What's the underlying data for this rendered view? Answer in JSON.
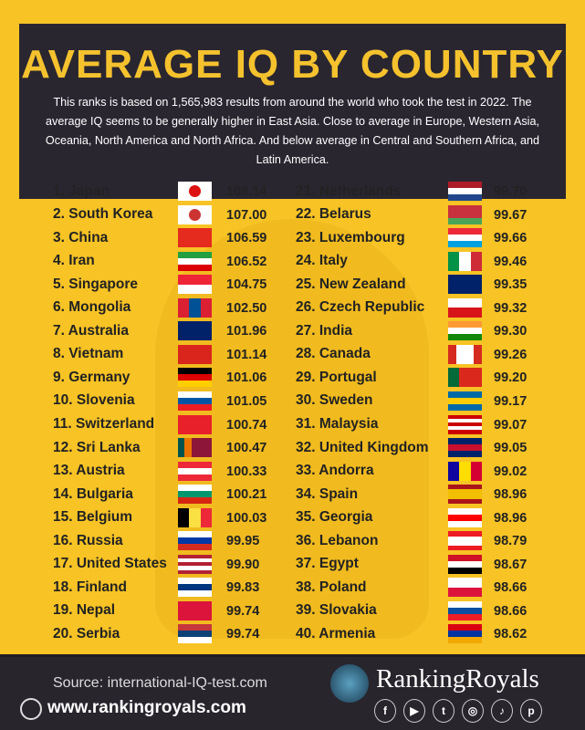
{
  "header": {
    "title": "AVERAGE IQ BY COUNTRY",
    "description": "This ranks is based on 1,565,983 results from around the world who took the test in 2022. The average IQ seems to be generally higher in East Asia. Close to average in Europe, Western Asia, Oceania, North America and North Africa. And below average in Central and Southern Africa, and Latin America."
  },
  "columns": {
    "rank": "Rank",
    "score": "Score"
  },
  "chart_data": {
    "type": "table",
    "title": "AVERAGE IQ BY COUNTRY",
    "columns": [
      "Rank",
      "Country",
      "Score"
    ],
    "rows": [
      {
        "label": "1. Japan",
        "score": "108.14",
        "flag": {
          "d": "h",
          "c": [
            "#fff"
          ],
          "dot": "#d11"
        }
      },
      {
        "label": "2. South Korea",
        "score": "107.00",
        "flag": {
          "d": "h",
          "c": [
            "#fff"
          ],
          "dot": "#c33"
        }
      },
      {
        "label": "3. China",
        "score": "106.59",
        "flag": {
          "d": "h",
          "c": [
            "#e52a1e"
          ]
        }
      },
      {
        "label": "4. Iran",
        "score": "106.52",
        "flag": {
          "d": "h",
          "c": [
            "#239f40",
            "#fff",
            "#da0000"
          ]
        }
      },
      {
        "label": "5. Singapore",
        "score": "104.75",
        "flag": {
          "d": "h",
          "c": [
            "#ee2536",
            "#fff"
          ]
        }
      },
      {
        "label": "6. Mongolia",
        "score": "102.50",
        "flag": {
          "d": "v",
          "c": [
            "#da2032",
            "#015197",
            "#da2032"
          ]
        }
      },
      {
        "label": "7. Australia",
        "score": "101.96",
        "flag": {
          "d": "h",
          "c": [
            "#012169"
          ]
        }
      },
      {
        "label": "8. Vietnam",
        "score": "101.14",
        "flag": {
          "d": "h",
          "c": [
            "#da251d"
          ]
        }
      },
      {
        "label": "9. Germany",
        "score": "101.06",
        "flag": {
          "d": "h",
          "c": [
            "#000",
            "#dd0000",
            "#ffce00"
          ]
        }
      },
      {
        "label": "10. Slovenia",
        "score": "101.05",
        "flag": {
          "d": "h",
          "c": [
            "#fff",
            "#0055a4",
            "#ed1c24"
          ]
        }
      },
      {
        "label": "11. Switzerland",
        "score": "100.74",
        "flag": {
          "d": "h",
          "c": [
            "#e8202a"
          ]
        }
      },
      {
        "label": "12. Sri Lanka",
        "score": "100.47",
        "flag": {
          "d": "v",
          "c": [
            "#00534e",
            "#eb7400",
            "#8d153a",
            "#8d153a",
            "#8d153a"
          ]
        }
      },
      {
        "label": "13. Austria",
        "score": "100.33",
        "flag": {
          "d": "h",
          "c": [
            "#ed2939",
            "#fff",
            "#ed2939"
          ]
        }
      },
      {
        "label": "14. Bulgaria",
        "score": "100.21",
        "flag": {
          "d": "h",
          "c": [
            "#fff",
            "#00966e",
            "#d62612"
          ]
        }
      },
      {
        "label": "15. Belgium",
        "score": "100.03",
        "flag": {
          "d": "v",
          "c": [
            "#000",
            "#fae042",
            "#ed2939"
          ]
        }
      },
      {
        "label": "16. Russia",
        "score": "99.95",
        "flag": {
          "d": "h",
          "c": [
            "#fff",
            "#0039a6",
            "#d52b1e"
          ]
        }
      },
      {
        "label": "17. United States",
        "score": "99.90",
        "flag": {
          "d": "h",
          "c": [
            "#b22234",
            "#fff",
            "#b22234",
            "#fff",
            "#b22234"
          ]
        }
      },
      {
        "label": "18. Finland",
        "score": "99.83",
        "flag": {
          "d": "h",
          "c": [
            "#fff",
            "#003580",
            "#fff"
          ]
        }
      },
      {
        "label": "19. Nepal",
        "score": "99.74",
        "flag": {
          "d": "h",
          "c": [
            "#dc143c"
          ]
        }
      },
      {
        "label": "20. Serbia",
        "score": "99.74",
        "flag": {
          "d": "h",
          "c": [
            "#c6363c",
            "#0c4076",
            "#fff"
          ]
        }
      },
      {
        "label": "21. Netherlands",
        "score": "99.70",
        "flag": {
          "d": "h",
          "c": [
            "#ae1c28",
            "#fff",
            "#21468b"
          ]
        }
      },
      {
        "label": "22. Belarus",
        "score": "99.67",
        "flag": {
          "d": "h",
          "c": [
            "#c8313e",
            "#c8313e",
            "#4aa657"
          ]
        }
      },
      {
        "label": "23. Luxembourg",
        "score": "99.66",
        "flag": {
          "d": "h",
          "c": [
            "#ed2939",
            "#fff",
            "#00a1de"
          ]
        }
      },
      {
        "label": "24. Italy",
        "score": "99.46",
        "flag": {
          "d": "v",
          "c": [
            "#009246",
            "#fff",
            "#ce2b37"
          ]
        }
      },
      {
        "label": "25. New Zealand",
        "score": "99.35",
        "flag": {
          "d": "h",
          "c": [
            "#012169"
          ]
        }
      },
      {
        "label": "26. Czech Republic",
        "score": "99.32",
        "flag": {
          "d": "h",
          "c": [
            "#fff",
            "#d7141a"
          ]
        }
      },
      {
        "label": "27. India",
        "score": "99.30",
        "flag": {
          "d": "h",
          "c": [
            "#ff9933",
            "#fff",
            "#138808"
          ]
        }
      },
      {
        "label": "28. Canada",
        "score": "99.26",
        "flag": {
          "d": "v",
          "c": [
            "#d52b1e",
            "#fff",
            "#fff",
            "#d52b1e"
          ]
        }
      },
      {
        "label": "29. Portugal",
        "score": "99.20",
        "flag": {
          "d": "v",
          "c": [
            "#046a38",
            "#da291c",
            "#da291c"
          ]
        }
      },
      {
        "label": "30. Sweden",
        "score": "99.17",
        "flag": {
          "d": "h",
          "c": [
            "#006aa7",
            "#fecc02",
            "#006aa7"
          ]
        }
      },
      {
        "label": "31. Malaysia",
        "score": "99.07",
        "flag": {
          "d": "h",
          "c": [
            "#cc0001",
            "#fff",
            "#cc0001",
            "#fff",
            "#cc0001"
          ]
        }
      },
      {
        "label": "32. United Kingdom",
        "score": "99.05",
        "flag": {
          "d": "h",
          "c": [
            "#012169",
            "#c8102e",
            "#012169"
          ]
        }
      },
      {
        "label": "33. Andorra",
        "score": "99.02",
        "flag": {
          "d": "v",
          "c": [
            "#10069f",
            "#fedd00",
            "#d50032"
          ]
        }
      },
      {
        "label": "34. Spain",
        "score": "98.96",
        "flag": {
          "d": "h",
          "c": [
            "#aa151b",
            "#f1bf00",
            "#f1bf00",
            "#aa151b"
          ]
        }
      },
      {
        "label": "35. Georgia",
        "score": "98.96",
        "flag": {
          "d": "h",
          "c": [
            "#fff",
            "#ff0000",
            "#fff"
          ]
        }
      },
      {
        "label": "36. Lebanon",
        "score": "98.79",
        "flag": {
          "d": "h",
          "c": [
            "#ed1c24",
            "#fff",
            "#fff",
            "#ed1c24"
          ]
        }
      },
      {
        "label": "37. Egypt",
        "score": "98.67",
        "flag": {
          "d": "h",
          "c": [
            "#ce1126",
            "#fff",
            "#000"
          ]
        }
      },
      {
        "label": "38. Poland",
        "score": "98.66",
        "flag": {
          "d": "h",
          "c": [
            "#fff",
            "#dc143c"
          ]
        }
      },
      {
        "label": "39. Slovakia",
        "score": "98.66",
        "flag": {
          "d": "h",
          "c": [
            "#fff",
            "#0b4ea2",
            "#ee1c25"
          ]
        }
      },
      {
        "label": "40. Armenia",
        "score": "98.62",
        "flag": {
          "d": "h",
          "c": [
            "#d90012",
            "#0033a0",
            "#f2a800"
          ]
        }
      }
    ]
  },
  "footer": {
    "source": "Source: international-IQ-test.com",
    "website": "www.rankingroyals.com",
    "brand": "RankingRoyals",
    "social": [
      {
        "icon": "facebook-icon",
        "glyph": "f"
      },
      {
        "icon": "youtube-icon",
        "glyph": "▶"
      },
      {
        "icon": "twitter-icon",
        "glyph": "t"
      },
      {
        "icon": "instagram-icon",
        "glyph": "◎"
      },
      {
        "icon": "tiktok-icon",
        "glyph": "♪"
      },
      {
        "icon": "pinterest-icon",
        "glyph": "p"
      }
    ]
  }
}
